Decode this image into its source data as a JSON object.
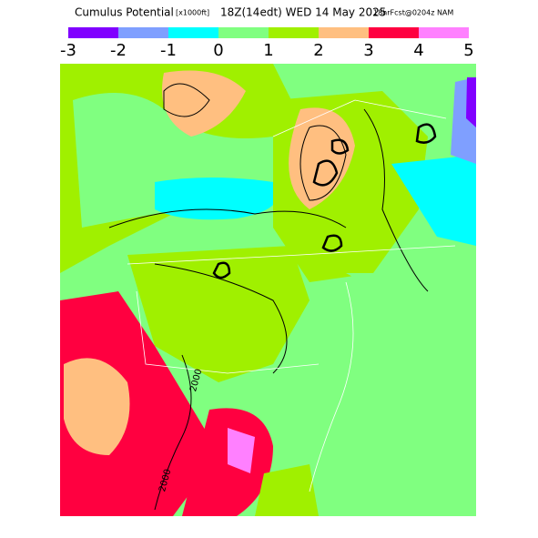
{
  "header": {
    "title": "Cumulus Potential",
    "units": "[x1000ft]",
    "valid": "18Z(14edt) WED 14 May 2025",
    "forecast": "18hrFcst@0204z NAM"
  },
  "legend": {
    "colors": [
      "#8000ff",
      "#7f9fff",
      "#00ffff",
      "#80ff80",
      "#a0f000",
      "#ffbf80",
      "#ff0040",
      "#ff80ff"
    ],
    "labels": [
      "-3",
      "-2",
      "-1",
      "0",
      "1",
      "2",
      "3",
      "4",
      "5"
    ]
  },
  "map": {
    "contour_labels": [
      "2000",
      "2000"
    ]
  }
}
